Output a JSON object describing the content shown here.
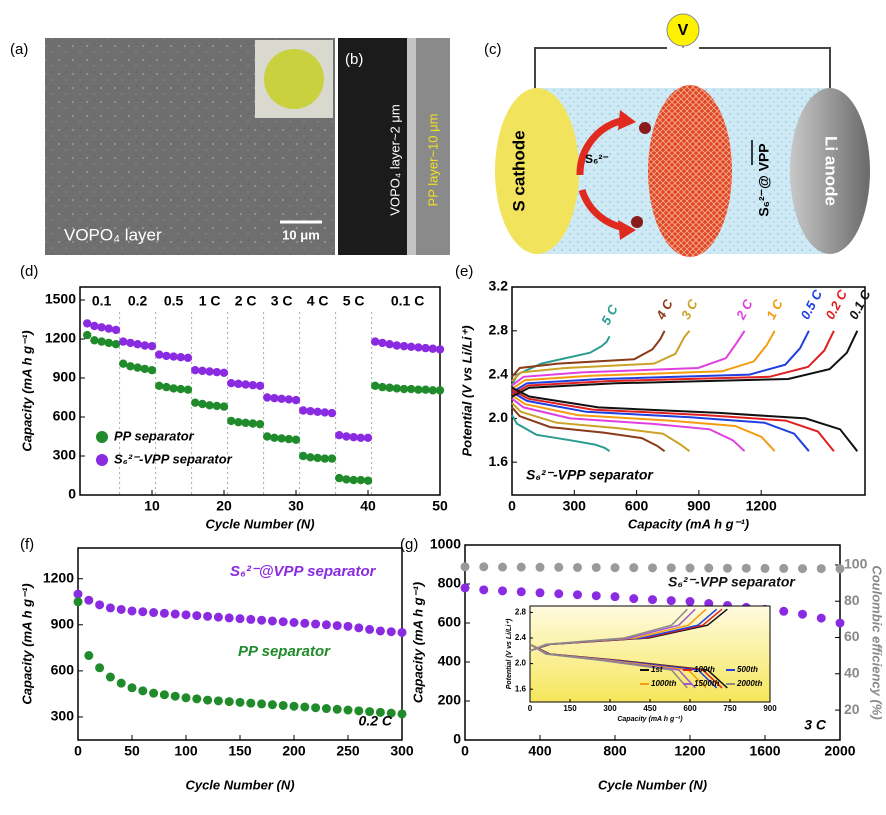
{
  "figure": {
    "a": {
      "label": "(a)",
      "layer_label": "VOPO₄ layer",
      "scale_bar": "10 μm"
    },
    "b": {
      "label": "(b)",
      "vopo4_layer": "VOPO₄ layer~2 μm",
      "pp_layer": "PP layer~10 μm"
    },
    "c": {
      "label": "(c)",
      "voltmeter": "V",
      "cathode": "S cathode",
      "polysulfide": "S₆²⁻",
      "separator": "S₆²⁻@ VPP",
      "anode": "Li anode"
    }
  },
  "chart_data": [
    {
      "type": "scatter",
      "panel_label": "(d)",
      "xlabel": "Cycle Number (N)",
      "ylabel": "Capacity (mA h g⁻¹)",
      "xlim": [
        0,
        50
      ],
      "xticks": [
        10,
        20,
        30,
        40,
        50
      ],
      "ylim": [
        0,
        1600
      ],
      "yticks": [
        0,
        300,
        600,
        900,
        1200,
        1500
      ],
      "legend": "lower left",
      "annotations": [
        "0.1",
        "0.2",
        "0.5",
        "1 C",
        "2 C",
        "3 C",
        "4 C",
        "5 C",
        "0.1 C"
      ],
      "x": [
        1,
        2,
        3,
        4,
        5,
        6,
        7,
        8,
        9,
        10,
        11,
        12,
        13,
        14,
        15,
        16,
        17,
        18,
        19,
        20,
        21,
        22,
        23,
        24,
        25,
        26,
        27,
        28,
        29,
        30,
        31,
        32,
        33,
        34,
        35,
        36,
        37,
        38,
        39,
        40,
        41,
        42,
        43,
        44,
        45,
        46,
        47,
        48,
        49,
        50
      ],
      "series": [
        {
          "name": "PP separator",
          "color": "#1f8b2a",
          "values": [
            1230,
            1190,
            1180,
            1170,
            1160,
            1010,
            990,
            980,
            970,
            960,
            840,
            830,
            820,
            815,
            810,
            710,
            700,
            690,
            685,
            680,
            570,
            560,
            555,
            550,
            545,
            450,
            440,
            435,
            430,
            425,
            300,
            290,
            285,
            280,
            280,
            130,
            120,
            115,
            115,
            110,
            840,
            830,
            825,
            820,
            815,
            815,
            810,
            810,
            805,
            805
          ]
        },
        {
          "name": "S₆²⁻-VPP separator",
          "color": "#8a2be2",
          "values": [
            1320,
            1300,
            1290,
            1280,
            1270,
            1180,
            1170,
            1160,
            1150,
            1145,
            1080,
            1070,
            1065,
            1060,
            1055,
            960,
            955,
            950,
            945,
            940,
            860,
            855,
            850,
            845,
            840,
            750,
            745,
            740,
            735,
            730,
            650,
            645,
            640,
            635,
            630,
            460,
            450,
            445,
            440,
            440,
            1180,
            1170,
            1160,
            1150,
            1145,
            1140,
            1135,
            1130,
            1125,
            1120
          ]
        }
      ]
    },
    {
      "type": "line",
      "panel_label": "(e)",
      "xlabel": "Capacity (mA h g⁻¹)",
      "ylabel": "Potential (V vs Li/Li⁺)",
      "xlim": [
        0,
        1700
      ],
      "xticks": [
        0,
        300,
        600,
        900,
        1200
      ],
      "ylim": [
        1.3,
        3.2
      ],
      "yticks": [
        1.6,
        {
          "value": 2,
          "label": "2.0"
        },
        2.4,
        2.8,
        3.2
      ],
      "annotations": [
        "S₆²⁻-VPP separator"
      ],
      "series": [
        {
          "name": "5 C",
          "color": "#2a9d8f",
          "x": [
            0,
            24,
            118,
            282,
            400,
            447,
            470,
            null,
            0,
            24,
            141,
            376,
            432,
            456,
            470
          ],
          "values": [
            2.03,
            1.95,
            1.85,
            1.8,
            1.76,
            1.73,
            1.7,
            null,
            2.3,
            2.4,
            2.5,
            2.6,
            2.66,
            2.7,
            2.75
          ]
        },
        {
          "name": "4 C",
          "color": "#8b3a1a",
          "x": [
            0,
            37,
            184,
            441,
            625,
            698,
            735,
            null,
            0,
            37,
            221,
            588,
            676,
            713,
            735
          ],
          "values": [
            2.1,
            2.02,
            1.92,
            1.87,
            1.82,
            1.75,
            1.7,
            null,
            2.38,
            2.46,
            2.5,
            2.54,
            2.63,
            2.72,
            2.8
          ]
        },
        {
          "name": "3 C",
          "color": "#c9a227",
          "x": [
            0,
            43,
            214,
            513,
            727,
            812,
            855,
            null,
            0,
            43,
            257,
            684,
            787,
            829,
            855
          ],
          "values": [
            2.14,
            2.06,
            1.96,
            1.91,
            1.86,
            1.76,
            1.7,
            null,
            2.34,
            2.42,
            2.46,
            2.5,
            2.59,
            2.74,
            2.8
          ]
        },
        {
          "name": "2 C",
          "color": "#e040e0",
          "x": [
            0,
            56,
            280,
            672,
            952,
            1064,
            1120,
            null,
            0,
            56,
            336,
            896,
            1030,
            1086,
            1120
          ],
          "values": [
            2.18,
            2.1,
            2.0,
            1.95,
            1.9,
            1.8,
            1.7,
            null,
            2.3,
            2.38,
            2.42,
            2.46,
            2.55,
            2.7,
            2.8
          ]
        },
        {
          "name": "1 C",
          "color": "#f39c12",
          "x": [
            0,
            63,
            316,
            759,
            1075,
            1202,
            1265,
            null,
            0,
            63,
            380,
            1012,
            1164,
            1227,
            1265
          ],
          "values": [
            2.21,
            2.13,
            2.03,
            1.98,
            1.93,
            1.83,
            1.7,
            null,
            2.27,
            2.35,
            2.39,
            2.43,
            2.52,
            2.67,
            2.8
          ]
        },
        {
          "name": "0.5 C",
          "color": "#1f3fe0",
          "x": [
            0,
            72,
            358,
            858,
            1216,
            1359,
            1430,
            null,
            0,
            72,
            429,
            1144,
            1316,
            1387,
            1430
          ],
          "values": [
            2.24,
            2.16,
            2.06,
            2.01,
            1.96,
            1.86,
            1.7,
            null,
            2.24,
            2.32,
            2.36,
            2.4,
            2.49,
            2.64,
            2.8
          ]
        },
        {
          "name": "0.2 C",
          "color": "#e02020",
          "x": [
            0,
            78,
            388,
            930,
            1318,
            1473,
            1550,
            null,
            0,
            78,
            465,
            1240,
            1426,
            1504,
            1550
          ],
          "values": [
            2.26,
            2.18,
            2.08,
            2.03,
            1.98,
            1.88,
            1.7,
            null,
            2.22,
            2.3,
            2.34,
            2.38,
            2.47,
            2.62,
            2.8
          ]
        },
        {
          "name": "0.1 C",
          "color": "#111111",
          "x": [
            0,
            83,
            416,
            998,
            1414,
            1580,
            1663,
            null,
            0,
            83,
            499,
            1330,
            1530,
            1613,
            1663
          ],
          "values": [
            2.28,
            2.2,
            2.1,
            2.05,
            2.0,
            1.9,
            1.7,
            null,
            2.2,
            2.28,
            2.32,
            2.36,
            2.45,
            2.6,
            2.8
          ]
        }
      ]
    },
    {
      "type": "scatter",
      "panel_label": "(f)",
      "xlabel": "Cycle Number (N)",
      "ylabel": "Capacity (mA h g⁻¹)",
      "xlim": [
        0,
        300
      ],
      "xticks": [
        0,
        50,
        100,
        150,
        200,
        250,
        300
      ],
      "ylim": [
        150,
        1400
      ],
      "yticks": [
        300,
        600,
        900,
        1200
      ],
      "annotations": [
        "0.2 C"
      ],
      "x": [
        0,
        10,
        20,
        30,
        40,
        50,
        60,
        70,
        80,
        90,
        100,
        110,
        120,
        130,
        140,
        150,
        160,
        170,
        180,
        190,
        200,
        210,
        220,
        230,
        240,
        250,
        260,
        270,
        280,
        290,
        300
      ],
      "series": [
        {
          "name": "S₆²⁻@VPP separator",
          "color": "#8a2be2",
          "values": [
            1100,
            1060,
            1030,
            1010,
            1000,
            990,
            985,
            980,
            975,
            970,
            965,
            960,
            955,
            950,
            945,
            940,
            935,
            930,
            925,
            920,
            915,
            910,
            905,
            900,
            895,
            890,
            880,
            870,
            860,
            855,
            850
          ]
        },
        {
          "name": "PP separator",
          "color": "#1f8b2a",
          "values": [
            1050,
            700,
            620,
            560,
            520,
            490,
            470,
            455,
            445,
            435,
            425,
            418,
            410,
            405,
            400,
            395,
            390,
            385,
            380,
            375,
            370,
            365,
            360,
            355,
            350,
            345,
            340,
            335,
            330,
            325,
            320
          ]
        }
      ]
    },
    {
      "type": "scatter",
      "panel_label": "(g)",
      "xlabel": "Cycle Number (N)",
      "ylabel": "Capacity (mA h g⁻¹)",
      "y2label": "Coulombic efficiency (%)",
      "xlim": [
        0,
        2000
      ],
      "xticks": [
        0,
        400,
        800,
        1200,
        1600,
        2000
      ],
      "ylim": [
        0,
        1000
      ],
      "yticks": [
        0,
        200,
        400,
        600,
        800,
        1000
      ],
      "y2lim": [
        3.5,
        111
      ],
      "y2ticks": [
        20,
        40,
        60,
        80,
        100
      ],
      "annotations": [
        "3 C"
      ],
      "x": [
        0,
        100,
        200,
        300,
        400,
        500,
        600,
        700,
        800,
        900,
        1000,
        1100,
        1200,
        1300,
        1400,
        1500,
        1600,
        1700,
        1800,
        1900,
        2000
      ],
      "series": [
        {
          "name": "S₆²⁻-VPP separator",
          "color": "#8a2be2",
          "values": [
            780,
            770,
            765,
            760,
            755,
            750,
            745,
            740,
            735,
            725,
            720,
            715,
            710,
            700,
            690,
            680,
            670,
            660,
            645,
            625,
            600
          ]
        },
        {
          "color": "#9a9a9a",
          "axis": "y2",
          "values": [
            99,
            99,
            98.8,
            98.8,
            98.7,
            98.7,
            98.6,
            98.6,
            98.5,
            98.5,
            98.4,
            98.4,
            98.3,
            98.3,
            98.2,
            98.2,
            98.1,
            98.1,
            98,
            98,
            97.9
          ]
        }
      ],
      "inset": {
        "type": "line",
        "xlabel": "Capacity (mA h g⁻¹)",
        "ylabel": "Potential (V vs Li/Li⁺)",
        "xlim": [
          0,
          900
        ],
        "xticks": [
          0,
          150,
          300,
          450,
          600,
          750,
          900
        ],
        "ylim": [
          1.4,
          2.9
        ],
        "yticks": [
          1.6,
          {
            "value": 2,
            "label": "2.0"
          },
          2.4,
          2.8
        ],
        "legend": "lower right",
        "series": [
          {
            "name": "1st",
            "color": "#111111",
            "x": [
              0,
              74,
              333,
              666,
              740,
              null,
              0,
              74,
              444,
              666,
              740
            ],
            "values": [
              2.3,
              2.15,
              2.05,
              1.9,
              1.62,
              null,
              2.2,
              2.3,
              2.4,
              2.6,
              2.85
            ]
          },
          {
            "name": "100th",
            "color": "#e02020",
            "x": [
              0,
              72,
              324,
              648,
              720,
              null,
              0,
              72,
              432,
              648,
              720
            ],
            "values": [
              2.3,
              2.15,
              2.05,
              1.9,
              1.62,
              null,
              2.2,
              2.3,
              2.4,
              2.6,
              2.85
            ]
          },
          {
            "name": "500th",
            "color": "#1f3fe0",
            "x": [
              0,
              70,
              315,
              630,
              700,
              null,
              0,
              70,
              420,
              630,
              700
            ],
            "values": [
              2.3,
              2.15,
              2.05,
              1.9,
              1.62,
              null,
              2.2,
              2.3,
              2.4,
              2.6,
              2.85
            ]
          },
          {
            "name": "1000th",
            "color": "#f39c12",
            "x": [
              0,
              66,
              297,
              594,
              660,
              null,
              0,
              66,
              396,
              594,
              660
            ],
            "values": [
              2.3,
              2.15,
              2.05,
              1.9,
              1.62,
              null,
              2.2,
              2.3,
              2.4,
              2.6,
              2.85
            ]
          },
          {
            "name": "1500th",
            "color": "#a05ad0",
            "x": [
              0,
              62,
              279,
              558,
              620,
              null,
              0,
              62,
              372,
              558,
              620
            ],
            "values": [
              2.3,
              2.15,
              2.05,
              1.9,
              1.62,
              null,
              2.2,
              2.3,
              2.4,
              2.6,
              2.85
            ]
          },
          {
            "name": "2000th",
            "color": "#8a8a8a",
            "x": [
              0,
              59,
              266,
              531,
              590,
              null,
              0,
              59,
              354,
              531,
              590
            ],
            "values": [
              2.3,
              2.15,
              2.05,
              1.9,
              1.62,
              null,
              2.2,
              2.3,
              2.4,
              2.6,
              2.85
            ]
          }
        ]
      }
    }
  ]
}
